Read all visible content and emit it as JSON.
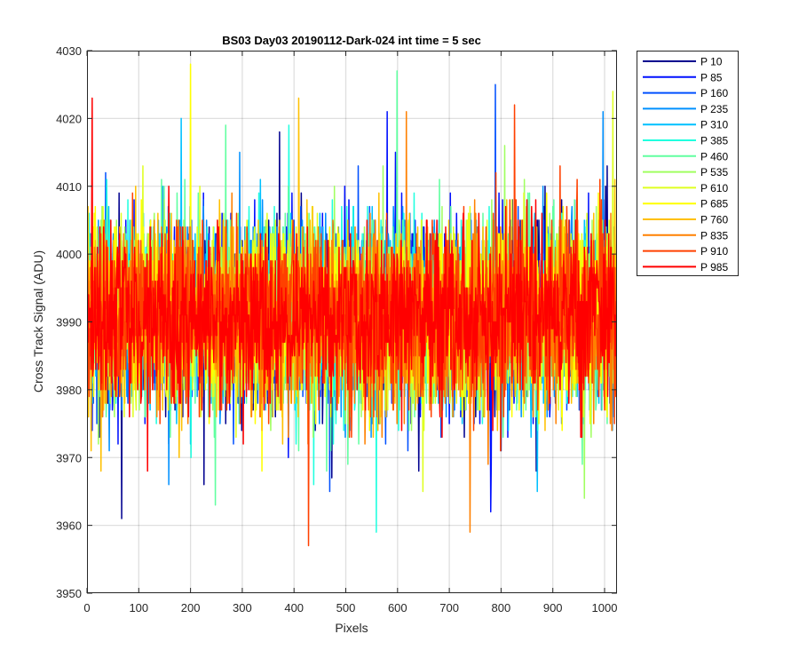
{
  "chart_data": {
    "type": "line",
    "title": "BS03 Day03 20190112-Dark-024 int time = 5 sec",
    "xlabel": "Pixels",
    "ylabel": "Cross Track Signal (ADU)",
    "xlim": [
      0,
      1024
    ],
    "ylim": [
      3950,
      4030
    ],
    "xticks": [
      "0",
      "100",
      "200",
      "300",
      "400",
      "500",
      "600",
      "700",
      "800",
      "900",
      "1000"
    ],
    "yticks": [
      "3950",
      "3960",
      "3970",
      "3980",
      "3990",
      "4000",
      "4010",
      "4020",
      "4030"
    ],
    "grid": true,
    "legend_position": "outside-top-right",
    "signal_mean": 3991,
    "signal_std": 6.5,
    "series": [
      {
        "name": "P 10",
        "color": "#00008F",
        "min": 3961,
        "max": 4018
      },
      {
        "name": "P 85",
        "color": "#0010FF",
        "min": 3962,
        "max": 4021
      },
      {
        "name": "P 160",
        "color": "#0050FF",
        "min": 3965,
        "max": 4025
      },
      {
        "name": "P 235",
        "color": "#0090FF",
        "min": 3966,
        "max": 4021
      },
      {
        "name": "P 310",
        "color": "#00C0FF",
        "min": 3965,
        "max": 4020
      },
      {
        "name": "P 385",
        "color": "#20FFDF",
        "min": 3959,
        "max": 4019
      },
      {
        "name": "P 460",
        "color": "#60FFA0",
        "min": 3963,
        "max": 4027
      },
      {
        "name": "P 535",
        "color": "#A0FF60",
        "min": 3964,
        "max": 4016
      },
      {
        "name": "P 610",
        "color": "#DFFF20",
        "min": 3965,
        "max": 4024
      },
      {
        "name": "P 685",
        "color": "#FFFF00",
        "min": 3968,
        "max": 4028
      },
      {
        "name": "P 760",
        "color": "#FFC000",
        "min": 3968,
        "max": 4023
      },
      {
        "name": "P 835",
        "color": "#FF8000",
        "min": 3959,
        "max": 4021
      },
      {
        "name": "P 910",
        "color": "#FF4000",
        "min": 3957,
        "max": 4022
      },
      {
        "name": "P 985",
        "color": "#FF0000",
        "min": 3968,
        "max": 4023
      }
    ]
  }
}
